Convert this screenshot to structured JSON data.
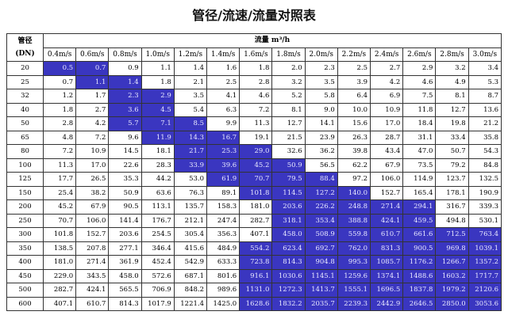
{
  "header": {
    "title": "管径/流速/流量对照表"
  },
  "table": {
    "dn_header": [
      "管径",
      "(DN)"
    ],
    "flow_header": "流量 m³/h",
    "highlight_color": "#3a36c0",
    "speeds": [
      "0.4m/s",
      "0.6m/s",
      "0.8m/s",
      "1.0m/s",
      "1.2m/s",
      "1.4m/s",
      "1.6m/s",
      "1.8m/s",
      "2.0m/s",
      "2.2m/s",
      "2.4m/s",
      "2.6m/s",
      "2.8m/s",
      "3.0m/s"
    ],
    "rows": [
      {
        "dn": "20",
        "cells": [
          "0.5",
          "0.7",
          "0.9",
          "1.1",
          "1.4",
          "1.6",
          "1.8",
          "2.0",
          "2.3",
          "2.5",
          "2.7",
          "2.9",
          "3.2",
          "3.4"
        ],
        "highlight": [
          0,
          1
        ]
      },
      {
        "dn": "25",
        "cells": [
          "0.7",
          "1.1",
          "1.4",
          "1.8",
          "2.1",
          "2.5",
          "2.8",
          "3.2",
          "3.5",
          "3.9",
          "4.2",
          "4.6",
          "4.9",
          "5.3"
        ],
        "highlight": [
          1,
          2
        ]
      },
      {
        "dn": "32",
        "cells": [
          "1.2",
          "1.7",
          "2.3",
          "2.9",
          "3.5",
          "4.1",
          "4.6",
          "5.2",
          "5.8",
          "6.4",
          "6.9",
          "7.5",
          "8.1",
          "8.7"
        ],
        "highlight": [
          2,
          3
        ]
      },
      {
        "dn": "40",
        "cells": [
          "1.8",
          "2.7",
          "3.6",
          "4.5",
          "5.4",
          "6.3",
          "7.2",
          "8.1",
          "9.0",
          "10.0",
          "10.9",
          "11.8",
          "12.7",
          "13.6"
        ],
        "highlight": [
          2,
          3
        ]
      },
      {
        "dn": "50",
        "cells": [
          "2.8",
          "4.2",
          "5.7",
          "7.1",
          "8.5",
          "9.9",
          "11.3",
          "12.7",
          "14.1",
          "15.6",
          "17.0",
          "18.4",
          "19.8",
          "21.2"
        ],
        "highlight": [
          2,
          4
        ]
      },
      {
        "dn": "65",
        "cells": [
          "4.8",
          "7.2",
          "9.6",
          "11.9",
          "14.3",
          "16.7",
          "19.1",
          "21.5",
          "23.9",
          "26.3",
          "28.7",
          "31.1",
          "33.4",
          "35.8"
        ],
        "highlight": [
          3,
          5
        ]
      },
      {
        "dn": "80",
        "cells": [
          "7.2",
          "10.9",
          "14.5",
          "18.1",
          "21.7",
          "25.3",
          "29.0",
          "32.6",
          "36.2",
          "39.8",
          "43.4",
          "47.0",
          "50.7",
          "54.3"
        ],
        "highlight": [
          4,
          6
        ]
      },
      {
        "dn": "100",
        "cells": [
          "11.3",
          "17.0",
          "22.6",
          "28.3",
          "33.9",
          "39.6",
          "45.2",
          "50.9",
          "56.5",
          "62.2",
          "67.9",
          "73.5",
          "79.2",
          "84.8"
        ],
        "highlight": [
          4,
          7
        ]
      },
      {
        "dn": "125",
        "cells": [
          "17.7",
          "26.5",
          "35.3",
          "44.2",
          "53.0",
          "61.9",
          "70.7",
          "79.5",
          "88.4",
          "97.2",
          "106.0",
          "114.9",
          "123.7",
          "132.5"
        ],
        "highlight": [
          5,
          8
        ]
      },
      {
        "dn": "150",
        "cells": [
          "25.4",
          "38.2",
          "50.9",
          "63.6",
          "76.3",
          "89.1",
          "101.8",
          "114.5",
          "127.2",
          "140.0",
          "152.7",
          "165.4",
          "178.1",
          "190.9"
        ],
        "highlight": [
          6,
          9
        ]
      },
      {
        "dn": "200",
        "cells": [
          "45.2",
          "67.9",
          "90.5",
          "113.1",
          "135.7",
          "158.3",
          "181.0",
          "203.6",
          "226.2",
          "248.8",
          "271.4",
          "294.1",
          "316.7",
          "339.3"
        ],
        "highlight": [
          7,
          11
        ]
      },
      {
        "dn": "250",
        "cells": [
          "70.7",
          "106.0",
          "141.4",
          "176.7",
          "212.1",
          "247.4",
          "282.7",
          "318.1",
          "353.4",
          "388.8",
          "424.1",
          "459.5",
          "494.8",
          "530.1"
        ],
        "highlight": [
          7,
          11
        ]
      },
      {
        "dn": "300",
        "cells": [
          "101.8",
          "152.7",
          "203.6",
          "254.5",
          "305.4",
          "356.3",
          "407.1",
          "458.0",
          "508.9",
          "559.8",
          "610.7",
          "661.6",
          "712.5",
          "763.4"
        ],
        "highlight": [
          7,
          13
        ]
      },
      {
        "dn": "350",
        "cells": [
          "138.5",
          "207.8",
          "277.1",
          "346.4",
          "415.6",
          "484.9",
          "554.2",
          "623.4",
          "692.7",
          "762.0",
          "831.3",
          "900.5",
          "969.8",
          "1039.1"
        ],
        "highlight": [
          6,
          13
        ]
      },
      {
        "dn": "400",
        "cells": [
          "181.0",
          "271.4",
          "361.9",
          "452.4",
          "542.9",
          "633.3",
          "723.8",
          "814.3",
          "904.8",
          "995.3",
          "1085.7",
          "1176.2",
          "1266.7",
          "1357.2"
        ],
        "highlight": [
          6,
          13
        ]
      },
      {
        "dn": "450",
        "cells": [
          "229.0",
          "343.5",
          "458.0",
          "572.6",
          "687.1",
          "801.6",
          "916.1",
          "1030.6",
          "1145.1",
          "1259.6",
          "1374.1",
          "1488.6",
          "1603.2",
          "1717.7"
        ],
        "highlight": [
          6,
          13
        ]
      },
      {
        "dn": "500",
        "cells": [
          "282.7",
          "424.1",
          "565.5",
          "706.9",
          "848.2",
          "989.6",
          "1131.0",
          "1272.3",
          "1413.7",
          "1555.1",
          "1696.5",
          "1837.8",
          "1979.2",
          "2120.6"
        ],
        "highlight": [
          6,
          13
        ]
      },
      {
        "dn": "600",
        "cells": [
          "407.1",
          "610.7",
          "814.3",
          "1017.9",
          "1221.4",
          "1425.0",
          "1628.6",
          "1832.2",
          "2035.7",
          "2239.3",
          "2442.9",
          "2646.5",
          "2850.0",
          "3053.6"
        ],
        "highlight": [
          6,
          13
        ]
      }
    ]
  }
}
